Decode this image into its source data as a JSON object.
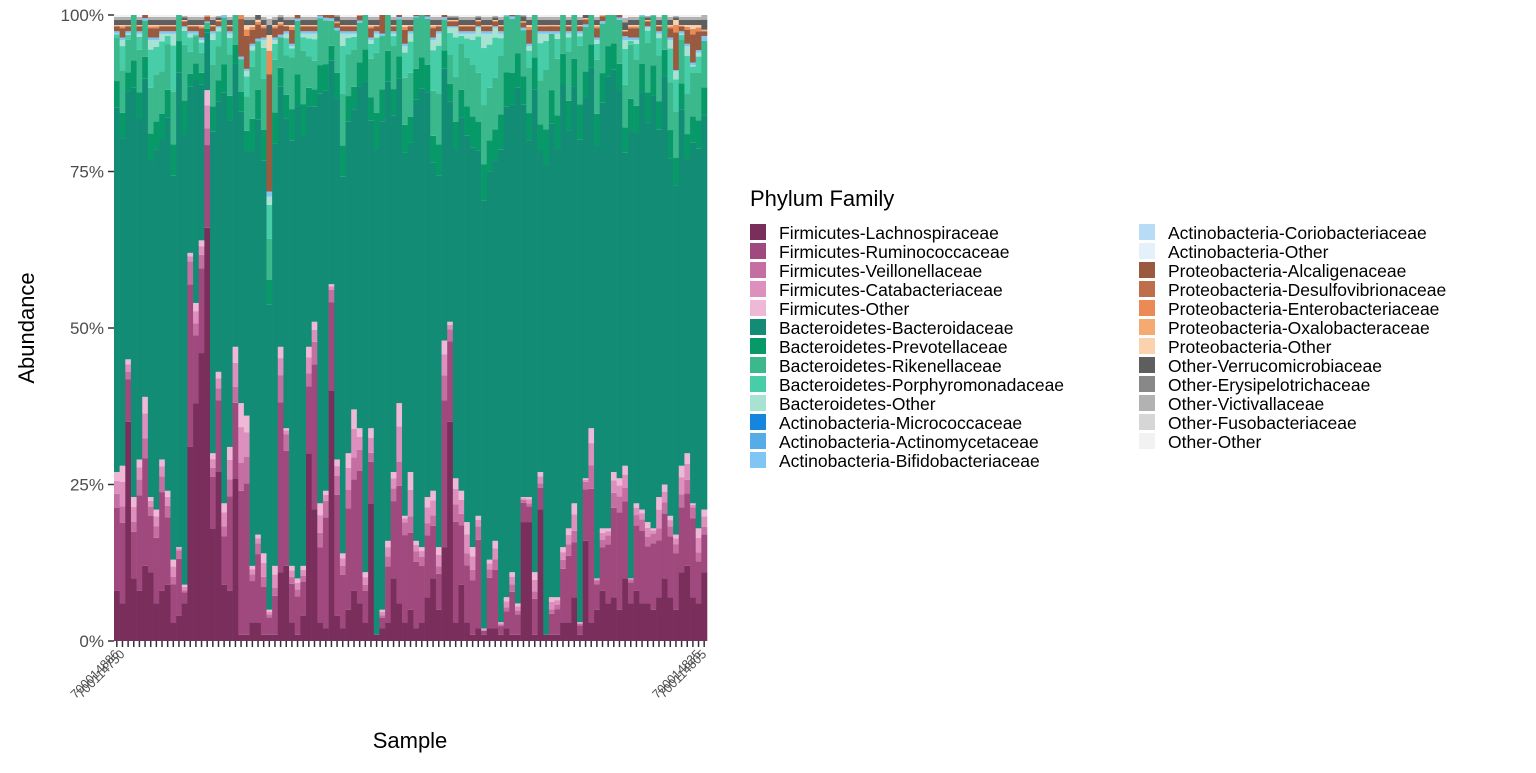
{
  "chart_data": {
    "type": "bar",
    "stacked": true,
    "normalized": true,
    "ylabel": "Abundance",
    "xlabel": "Sample",
    "ylim": [
      0,
      100
    ],
    "y_ticks": [
      "0%",
      "25%",
      "50%",
      "75%",
      "100%"
    ],
    "y_tick_values": [
      0,
      25,
      50,
      75,
      100
    ],
    "legend_title": "Phylum Family",
    "legend_position": "right",
    "grid": false,
    "n_samples": 105,
    "x_tick_labels": [
      "700014886",
      "700114750",
      "700014835",
      "700114805"
    ],
    "legend": [
      {
        "name": "Firmicutes-Lachnospiraceae",
        "color": "#7a2e5c"
      },
      {
        "name": "Firmicutes-Ruminococcaceae",
        "color": "#a0497e"
      },
      {
        "name": "Firmicutes-Veillonellaceae",
        "color": "#c46ea1"
      },
      {
        "name": "Firmicutes-Catabacteriaceae",
        "color": "#dd8fbe"
      },
      {
        "name": "Firmicutes-Other",
        "color": "#eeb8d6"
      },
      {
        "name": "Bacteroidetes-Bacteroidaceae",
        "color": "#128c74"
      },
      {
        "name": "Bacteroidetes-Prevotellaceae",
        "color": "#079a68"
      },
      {
        "name": "Bacteroidetes-Rikenellaceae",
        "color": "#3cb98c"
      },
      {
        "name": "Bacteroidetes-Porphyromonadaceae",
        "color": "#47cda8"
      },
      {
        "name": "Bacteroidetes-Other",
        "color": "#a8e2d2"
      },
      {
        "name": "Actinobacteria-Micrococcaceae",
        "color": "#1486e0"
      },
      {
        "name": "Actinobacteria-Actinomycetaceae",
        "color": "#55ace6"
      },
      {
        "name": "Actinobacteria-Bifidobacteriaceae",
        "color": "#7fc6f4"
      },
      {
        "name": "Actinobacteria-Coriobacteriaceae",
        "color": "#b9dcf6"
      },
      {
        "name": "Actinobacteria-Other",
        "color": "#e4f1fb"
      },
      {
        "name": "Proteobacteria-Alcaligenaceae",
        "color": "#9a5a40"
      },
      {
        "name": "Proteobacteria-Desulfovibrionaceae",
        "color": "#be6e4b"
      },
      {
        "name": "Proteobacteria-Enterobacteriaceae",
        "color": "#ea8a55"
      },
      {
        "name": "Proteobacteria-Oxalobacteraceae",
        "color": "#f5aa72"
      },
      {
        "name": "Proteobacteria-Other",
        "color": "#fad3ae"
      },
      {
        "name": "Other-Verrucomicrobiaceae",
        "color": "#5e5e5e"
      },
      {
        "name": "Other-Erysipelotrichaceae",
        "color": "#888888"
      },
      {
        "name": "Other-Victivallaceae",
        "color": "#b2b2b2"
      },
      {
        "name": "Other-Fusobacteriaceae",
        "color": "#d6d6d6"
      },
      {
        "name": "Other-Other",
        "color": "#f2f2f2"
      }
    ],
    "firmicutes_total_pct": [
      27,
      28,
      45,
      23,
      29,
      39,
      23,
      21,
      29,
      24,
      13,
      15,
      9,
      62,
      54,
      64,
      88,
      30,
      43,
      22,
      31,
      47,
      38,
      36,
      12,
      17,
      14,
      5,
      12,
      47,
      34,
      12,
      10,
      12,
      47,
      51,
      22,
      24,
      57,
      29,
      14,
      30,
      37,
      34,
      11,
      34,
      1,
      5,
      16,
      27,
      38,
      20,
      27,
      16,
      15,
      23,
      24,
      15,
      48,
      51,
      26,
      24,
      19,
      15,
      20,
      2,
      13,
      16,
      3,
      7,
      11,
      6,
      23,
      23,
      11,
      27,
      1,
      7,
      7,
      15,
      18,
      22,
      3,
      26,
      34,
      10,
      18,
      18,
      27,
      26,
      28,
      10,
      22,
      21,
      19,
      18,
      23,
      25,
      20,
      17,
      28,
      30,
      22,
      18,
      21
    ],
    "firmicutes_lachno_pct": [
      8,
      6,
      35,
      10,
      8,
      12,
      11,
      6,
      8,
      9,
      3,
      4,
      6,
      31,
      38,
      46,
      66,
      18,
      27,
      9,
      8,
      26,
      1,
      1,
      3,
      3,
      1,
      1,
      1,
      11,
      12,
      3,
      1,
      4,
      30,
      21,
      3,
      2,
      40,
      4,
      2,
      5,
      8,
      6,
      3,
      22,
      1,
      2,
      3,
      10,
      6,
      3,
      5,
      2,
      3,
      7,
      10,
      5,
      15,
      35,
      3,
      9,
      3,
      1,
      2,
      1,
      2,
      2,
      1,
      2,
      1,
      1,
      19,
      19,
      1,
      21,
      1,
      1,
      1,
      3,
      3,
      7,
      1,
      16,
      3,
      5,
      8,
      6,
      7,
      5,
      10,
      6,
      8,
      6,
      6,
      5,
      7,
      10,
      7,
      5,
      11,
      12,
      7,
      6,
      11
    ],
    "bacteroidetes_total_pct": [
      70,
      68,
      52,
      73,
      68,
      58,
      73,
      75,
      68,
      73,
      84,
      83,
      89,
      35,
      43,
      32,
      10,
      67,
      55,
      75,
      66,
      50,
      52,
      55,
      83,
      78,
      82,
      66,
      84,
      49,
      63,
      83,
      85,
      85,
      50,
      46,
      75,
      70,
      40,
      68,
      83,
      67,
      60,
      63,
      86,
      62,
      96,
      85,
      82,
      70,
      59,
      75,
      70,
      82,
      82,
      73,
      72,
      82,
      49,
      47,
      72,
      73,
      78,
      82,
      78,
      95,
      84,
      82,
      94,
      90,
      86,
      91,
      74,
      72,
      86,
      70,
      96,
      90,
      90,
      82,
      79,
      74,
      94,
      71,
      63,
      86,
      79,
      80,
      70,
      70,
      68,
      86,
      74,
      76,
      79,
      80,
      74,
      71,
      76,
      74,
      69,
      65,
      70,
      76,
      74
    ],
    "proteobacteria_total_pct": [
      1,
      2,
      1,
      2,
      1,
      1,
      2,
      2,
      1,
      1,
      1,
      1,
      1,
      1,
      1,
      2,
      1,
      1,
      1,
      1,
      1,
      1,
      8,
      7,
      3,
      3,
      2,
      25,
      2,
      2,
      1,
      3,
      3,
      1,
      1,
      1,
      1,
      4,
      1,
      1,
      1,
      1,
      1,
      1,
      1,
      2,
      1,
      8,
      1,
      1,
      1,
      3,
      1,
      1,
      1,
      2,
      2,
      1,
      1,
      1,
      1,
      1,
      1,
      1,
      1,
      1,
      1,
      1,
      1,
      1,
      1,
      1,
      1,
      3,
      1,
      1,
      1,
      1,
      1,
      1,
      1,
      2,
      1,
      1,
      1,
      2,
      1,
      1,
      1,
      2,
      1,
      2,
      2,
      1,
      1,
      1,
      1,
      2,
      2,
      8,
      1,
      3,
      6,
      4,
      1
    ]
  }
}
